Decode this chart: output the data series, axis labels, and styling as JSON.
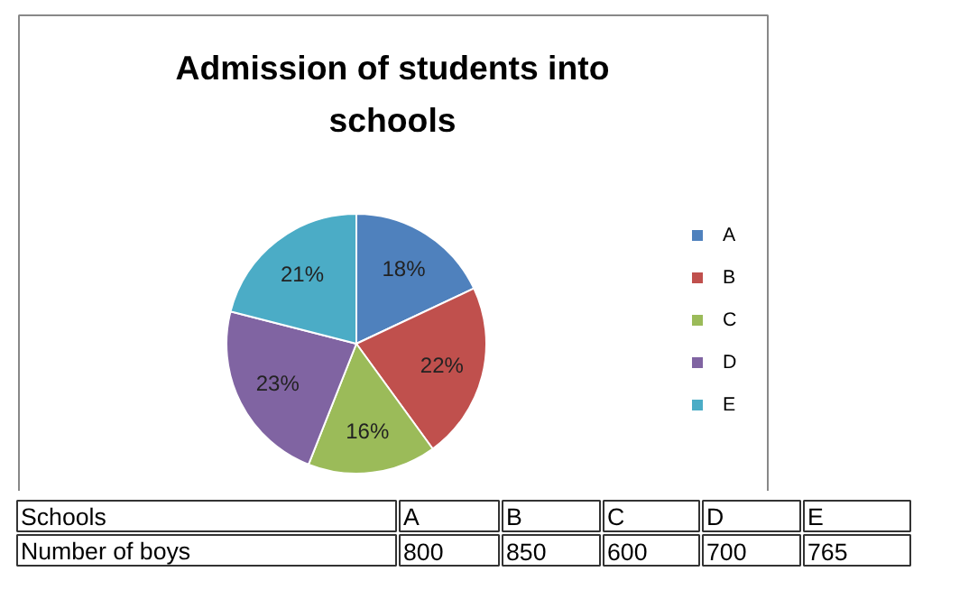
{
  "chart_data": [
    {
      "type": "pie",
      "title": "Admission of students into schools",
      "categories": [
        "A",
        "B",
        "C",
        "D",
        "E"
      ],
      "values": [
        18,
        22,
        16,
        23,
        21
      ],
      "colors": [
        "#4f81bd",
        "#c0504d",
        "#9bbb59",
        "#8064a2",
        "#4bacc6"
      ],
      "value_labels": [
        "18%",
        "22%",
        "16%",
        "23%",
        "21%"
      ],
      "legend": "right"
    },
    {
      "type": "other",
      "xlabel": "Schools",
      "ylabel": "Number of boys",
      "categories": [
        "A",
        "B",
        "C",
        "D",
        "E"
      ],
      "values": [
        800,
        850,
        600,
        700,
        765
      ],
      "data_labels": true
    }
  ]
}
